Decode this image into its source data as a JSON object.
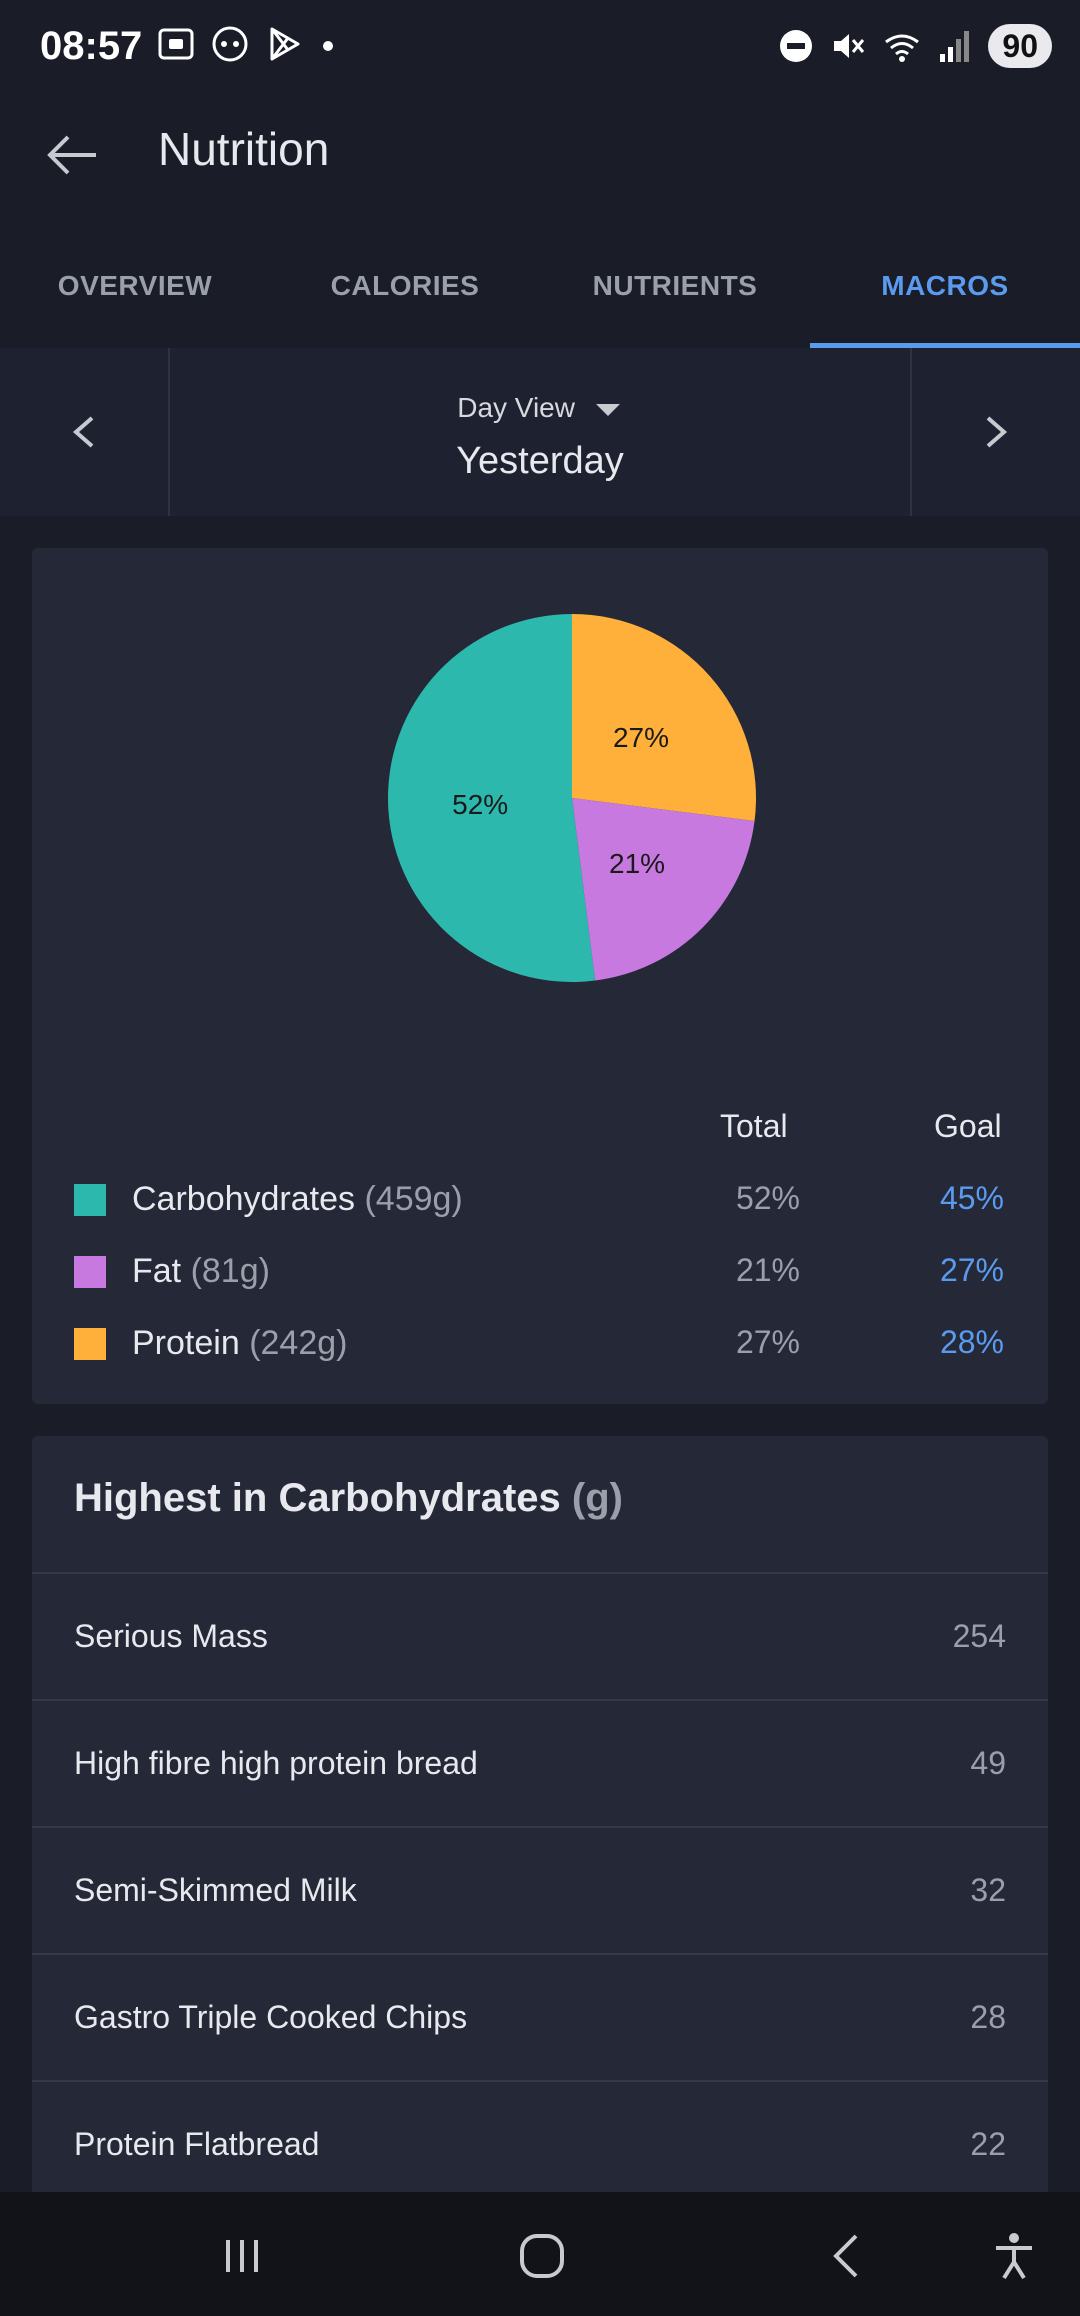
{
  "status_bar": {
    "time": "08:57",
    "battery": "90"
  },
  "app_bar": {
    "title": "Nutrition"
  },
  "tabs": [
    {
      "label": "OVERVIEW",
      "active": false
    },
    {
      "label": "CALORIES",
      "active": false
    },
    {
      "label": "NUTRIENTS",
      "active": false
    },
    {
      "label": "MACROS",
      "active": true
    }
  ],
  "day_selector": {
    "view_label": "Day View",
    "value": "Yesterday"
  },
  "chart_data": {
    "type": "pie",
    "slices": [
      {
        "name": "Protein",
        "value": 27,
        "label": "27%",
        "color": "#FFB03B"
      },
      {
        "name": "Fat",
        "value": 21,
        "label": "21%",
        "color": "#C779E0"
      },
      {
        "name": "Carbohydrates",
        "value": 52,
        "label": "52%",
        "color": "#2DB8AE"
      }
    ]
  },
  "legend": {
    "total_header": "Total",
    "goal_header": "Goal",
    "rows": [
      {
        "name": "Carbohydrates",
        "grams": "(459g)",
        "total": "52%",
        "goal": "45%",
        "color": "#2DB8AE"
      },
      {
        "name": "Fat",
        "grams": "(81g)",
        "total": "21%",
        "goal": "27%",
        "color": "#C779E0"
      },
      {
        "name": "Protein",
        "grams": "(242g)",
        "total": "27%",
        "goal": "28%",
        "color": "#FFB03B"
      }
    ]
  },
  "highest": {
    "title": "Highest in Carbohydrates",
    "unit": "(g)",
    "items": [
      {
        "name": "Serious Mass",
        "value": "254"
      },
      {
        "name": "High fibre high protein bread",
        "value": "49"
      },
      {
        "name": "Semi-Skimmed Milk",
        "value": "32"
      },
      {
        "name": "Gastro Triple Cooked Chips",
        "value": "28"
      },
      {
        "name": "Protein Flatbread",
        "value": "22"
      }
    ]
  }
}
